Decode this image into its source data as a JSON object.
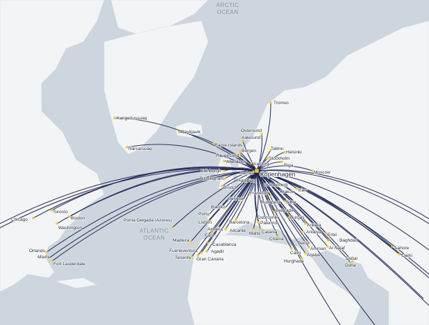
{
  "map": {
    "ocean_labels": {
      "arctic_line1": "ARCTIC",
      "arctic_line2": "OCEAN",
      "atlantic_line1": "ATLANTIC",
      "atlantic_line2": "OCEAN"
    },
    "hub": {
      "name": "Copenhagen"
    },
    "colors": {
      "route": "#1c2452",
      "airport": "#f5c518",
      "sea": "#cdd6de",
      "land": "#f3f4f5"
    },
    "destinations": [
      "Tromso",
      "Kangerlussuaq",
      "Reykjavik",
      "Narsarsuaq",
      "Ostersund",
      "Aalesund",
      "Faroe Islands",
      "Bergen",
      "Haugesund",
      "Tallinn",
      "Helsinki",
      "Stockholm",
      "Aberdeen",
      "Aalborg",
      "Gothenburg",
      "Riga",
      "Moscow",
      "Edinburgh",
      "Aarhus",
      "Birmingham",
      "Hamburg",
      "Bristol",
      "Krakow",
      "Kiev",
      "Frankfurt",
      "Geneva",
      "Biarritz",
      "Sibiu",
      "Porto",
      "Lisbon",
      "Barcelona",
      "Burgas",
      "Ankara",
      "Almeria",
      "Alicante",
      "Malta",
      "Catania",
      "Faro",
      "Antalya",
      "Erbil",
      "Baghdad",
      "Chania",
      "Beirut",
      "Amman",
      "Al Najaf",
      "Casablanca",
      "Madeira",
      "Cairo",
      "Aqaba",
      "Hurghada",
      "Dubai",
      "Doha",
      "Lahore",
      "Delhi",
      "Agadir",
      "Fuerteventura",
      "Tenerife",
      "Gran Canaria",
      "Ponta Delgada (Azores)",
      "Toronto",
      "Boston",
      "Chicago",
      "Washington",
      "Orlando",
      "Miami",
      "Fort Lauderdale",
      "Palermo",
      "Belgrade",
      "Dubrovnik",
      "Budapest"
    ]
  }
}
